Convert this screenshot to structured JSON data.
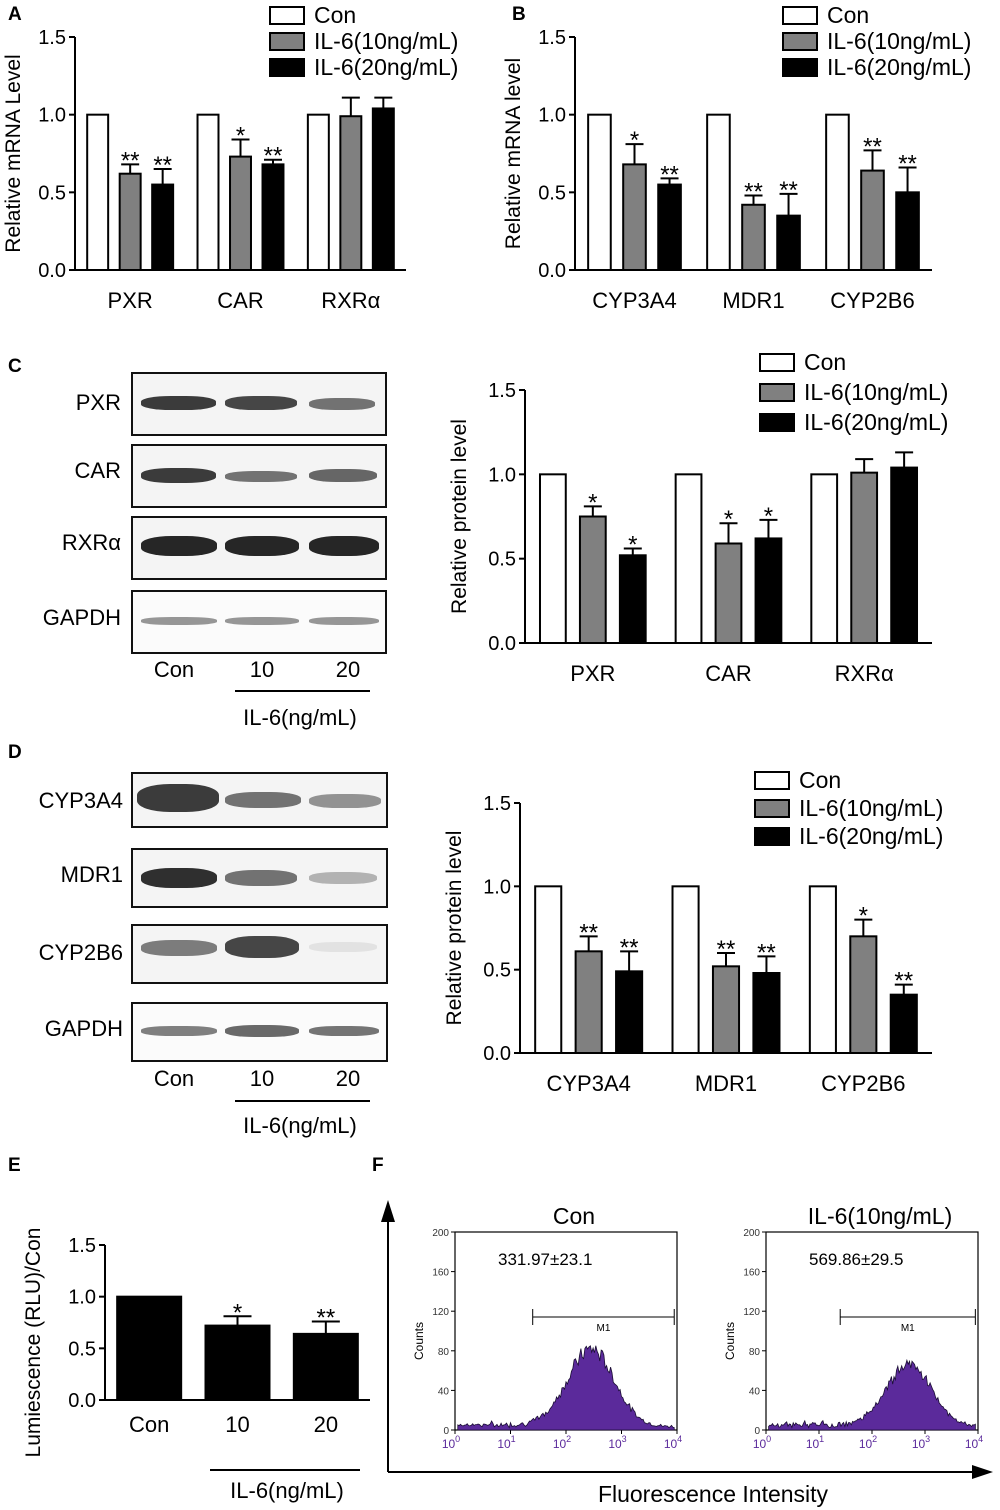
{
  "panels": {
    "A": "A",
    "B": "B",
    "C": "C",
    "D": "D",
    "E": "E",
    "F": "F"
  },
  "legend": {
    "con": "Con",
    "il6_10": "IL-6(10ng/mL)",
    "il6_20": "IL-6(20ng/mL)"
  },
  "colors": {
    "con": "#ffffff",
    "il6_10": "#808080",
    "il6_20": "#000000",
    "histogram": "#5b2a9b"
  },
  "blot_c": {
    "rows": [
      "PXR",
      "CAR",
      "RXRα",
      "GAPDH"
    ],
    "lanes": [
      "Con",
      "10",
      "20"
    ],
    "treatment": "IL-6(ng/mL)"
  },
  "blot_d": {
    "rows": [
      "CYP3A4",
      "MDR1",
      "CYP2B6",
      "GAPDH"
    ],
    "lanes": [
      "Con",
      "10",
      "20"
    ],
    "treatment": "IL-6(ng/mL)"
  },
  "panel_e_treatment": "IL-6(ng/mL)",
  "chart_data": [
    {
      "id": "A",
      "type": "bar",
      "ylabel": "Relative mRNA Level",
      "ylim": [
        0,
        1.5
      ],
      "yticks": [
        "0.0",
        "0.5",
        "1.0",
        "1.5"
      ],
      "categories": [
        "PXR",
        "CAR",
        "RXRα"
      ],
      "series": [
        {
          "name": "Con",
          "values": [
            1.0,
            1.0,
            1.0
          ],
          "err": [
            0,
            0,
            0
          ],
          "sig": [
            "",
            "",
            ""
          ]
        },
        {
          "name": "IL-6(10ng/mL)",
          "values": [
            0.62,
            0.73,
            0.99
          ],
          "err": [
            0.06,
            0.11,
            0.12
          ],
          "sig": [
            "**",
            "*",
            ""
          ]
        },
        {
          "name": "IL-6(20ng/mL)",
          "values": [
            0.55,
            0.68,
            1.04
          ],
          "err": [
            0.1,
            0.03,
            0.07
          ],
          "sig": [
            "**",
            "**",
            ""
          ]
        }
      ]
    },
    {
      "id": "B",
      "type": "bar",
      "ylabel": "Relative mRNA level",
      "ylim": [
        0,
        1.5
      ],
      "yticks": [
        "0.0",
        "0.5",
        "1.0",
        "1.5"
      ],
      "categories": [
        "CYP3A4",
        "MDR1",
        "CYP2B6"
      ],
      "series": [
        {
          "name": "Con",
          "values": [
            1.0,
            1.0,
            1.0
          ],
          "err": [
            0,
            0,
            0
          ],
          "sig": [
            "",
            "",
            ""
          ]
        },
        {
          "name": "IL-6(10ng/mL)",
          "values": [
            0.68,
            0.42,
            0.64
          ],
          "err": [
            0.13,
            0.06,
            0.13
          ],
          "sig": [
            "*",
            "**",
            "**"
          ]
        },
        {
          "name": "IL-6(20ng/mL)",
          "values": [
            0.55,
            0.35,
            0.5
          ],
          "err": [
            0.04,
            0.14,
            0.16
          ],
          "sig": [
            "**",
            "**",
            "**"
          ]
        }
      ]
    },
    {
      "id": "C",
      "type": "bar",
      "ylabel": "Relative protein level",
      "ylim": [
        0,
        1.5
      ],
      "yticks": [
        "0.0",
        "0.5",
        "1.0",
        "1.5"
      ],
      "categories": [
        "PXR",
        "CAR",
        "RXRα"
      ],
      "series": [
        {
          "name": "Con",
          "values": [
            1.0,
            1.0,
            1.0
          ],
          "err": [
            0,
            0,
            0
          ],
          "sig": [
            "",
            "",
            ""
          ]
        },
        {
          "name": "IL-6(10ng/mL)",
          "values": [
            0.75,
            0.59,
            1.01
          ],
          "err": [
            0.06,
            0.12,
            0.08
          ],
          "sig": [
            "*",
            "*",
            ""
          ]
        },
        {
          "name": "IL-6(20ng/mL)",
          "values": [
            0.52,
            0.62,
            1.04
          ],
          "err": [
            0.04,
            0.11,
            0.09
          ],
          "sig": [
            "*",
            "*",
            ""
          ]
        }
      ]
    },
    {
      "id": "D",
      "type": "bar",
      "ylabel": "Relative protein level",
      "ylim": [
        0,
        1.5
      ],
      "yticks": [
        "0.0",
        "0.5",
        "1.0",
        "1.5"
      ],
      "categories": [
        "CYP3A4",
        "MDR1",
        "CYP2B6"
      ],
      "series": [
        {
          "name": "Con",
          "values": [
            1.0,
            1.0,
            1.0
          ],
          "err": [
            0,
            0,
            0
          ],
          "sig": [
            "",
            "",
            ""
          ]
        },
        {
          "name": "IL-6(10ng/mL)",
          "values": [
            0.61,
            0.52,
            0.7
          ],
          "err": [
            0.09,
            0.08,
            0.1
          ],
          "sig": [
            "**",
            "**",
            "*"
          ]
        },
        {
          "name": "IL-6(20ng/mL)",
          "values": [
            0.49,
            0.48,
            0.35
          ],
          "err": [
            0.12,
            0.1,
            0.06
          ],
          "sig": [
            "**",
            "**",
            "**"
          ]
        }
      ]
    },
    {
      "id": "E",
      "type": "bar",
      "ylabel": "Lumiescence (RLU)/Con",
      "ylim": [
        0,
        1.5
      ],
      "yticks": [
        "0.0",
        "0.5",
        "1.0",
        "1.5"
      ],
      "categories": [
        "Con",
        "10",
        "20"
      ],
      "values": [
        1.0,
        0.72,
        0.64
      ],
      "err": [
        0,
        0.09,
        0.12
      ],
      "sig": [
        "",
        "*",
        "**"
      ]
    },
    {
      "id": "F",
      "type": "area",
      "xlabel": "Fluorescence Intensity",
      "ylabel": "Counts",
      "xticks_exp": [
        "0",
        "1",
        "2",
        "3",
        "4"
      ],
      "yticks": [
        "0",
        "40",
        "80",
        "120",
        "160",
        "200"
      ],
      "gate": "M1",
      "histograms": [
        {
          "title": "Con",
          "value": "331.97±23.1",
          "peak_decade": 2.45,
          "peak_count": 80
        },
        {
          "title": "IL-6(10ng/mL)",
          "value": "569.86±29.5",
          "peak_decade": 2.7,
          "peak_count": 65
        }
      ]
    }
  ]
}
